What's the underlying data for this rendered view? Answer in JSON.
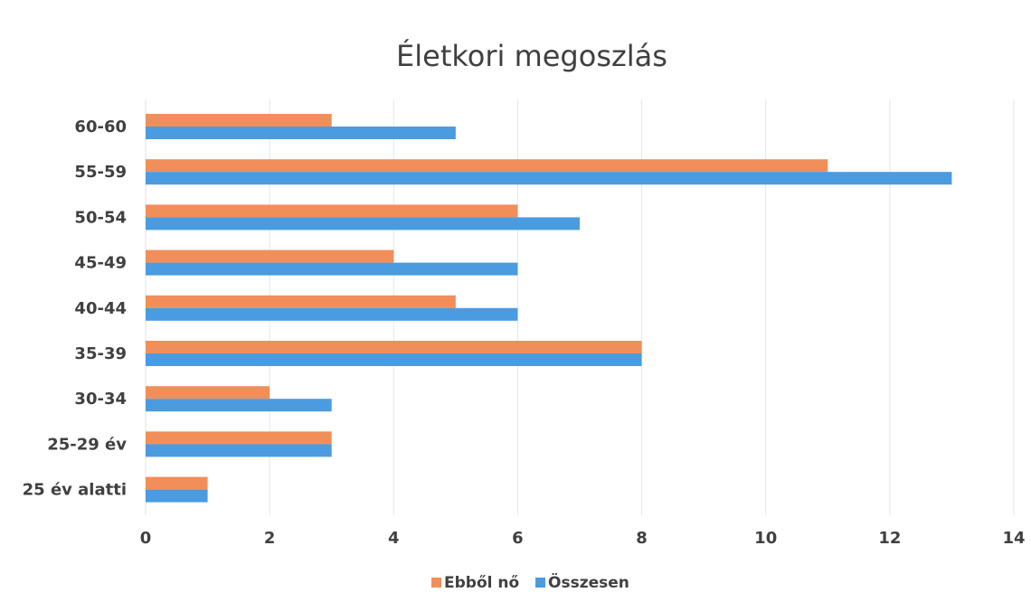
{
  "chart_data": {
    "type": "bar",
    "orientation": "horizontal",
    "title": "Életkori megoszlás",
    "categories": [
      "60-60",
      "55-59",
      "50-54",
      "45-49",
      "40-44",
      "35-39",
      "30-34",
      "25-29 év",
      "25 év alatti"
    ],
    "series": [
      {
        "name": "Ebből nő",
        "color": "#f28e5a",
        "values": [
          3,
          11,
          6,
          4,
          5,
          8,
          2,
          3,
          1
        ]
      },
      {
        "name": "Összesen",
        "color": "#4a9be0",
        "values": [
          5,
          13,
          7,
          6,
          6,
          8,
          3,
          3,
          1
        ]
      }
    ],
    "xlim": [
      0,
      14
    ],
    "xticks": [
      0,
      2,
      4,
      6,
      8,
      10,
      12,
      14
    ],
    "grid": "vertical",
    "legend_position": "bottom"
  }
}
